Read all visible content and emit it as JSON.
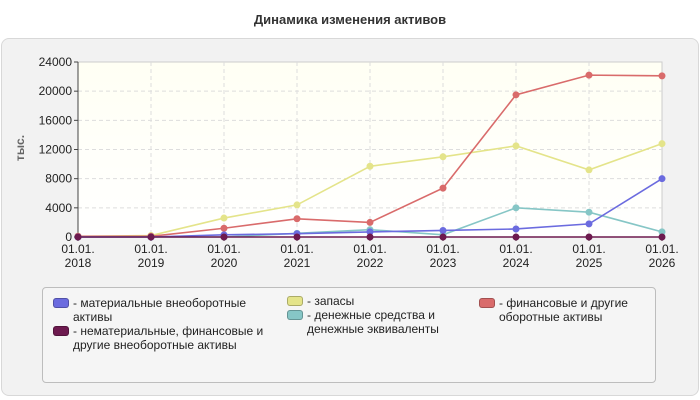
{
  "chart_data": {
    "type": "line",
    "title": "Динамика изменения активов",
    "ylabel": "тыс.",
    "xlabel": "",
    "ylim": [
      0,
      24000
    ],
    "yticks": [
      "0",
      "4000",
      "8000",
      "12000",
      "16000",
      "20000",
      "24000"
    ],
    "categories": [
      "01.01.\n2018",
      "01.01.\n2019",
      "01.01.\n2020",
      "01.01.\n2021",
      "01.01.\n2022",
      "01.01.\n2023",
      "01.01.\n2024",
      "01.01.\n2025",
      "01.01.\n2026"
    ],
    "grid": true,
    "legend_position": "bottom",
    "series": [
      {
        "name": "- материальные внеоборотные активы",
        "color": "#6b6bdf",
        "values": [
          0,
          0,
          300,
          450,
          700,
          900,
          1100,
          1800,
          8000
        ]
      },
      {
        "name": "- нематериальные, финансовые и другие внеоборотные активы",
        "color": "#6d1a4f",
        "values": [
          0,
          0,
          0,
          0,
          0,
          0,
          0,
          0,
          0
        ]
      },
      {
        "name": "- запасы",
        "color": "#e4e48a",
        "values": [
          100,
          200,
          2600,
          4400,
          9700,
          11000,
          12500,
          9200,
          12800
        ]
      },
      {
        "name": "- денежные средства и денежные эквиваленты",
        "color": "#86c6c6",
        "values": [
          0,
          0,
          0,
          500,
          1000,
          300,
          4000,
          3400,
          700
        ]
      },
      {
        "name": "- финансовые и другие оборотные активы",
        "color": "#d96b6b",
        "values": [
          100,
          100,
          1200,
          2500,
          2000,
          6700,
          19500,
          22200,
          22100
        ]
      }
    ]
  }
}
